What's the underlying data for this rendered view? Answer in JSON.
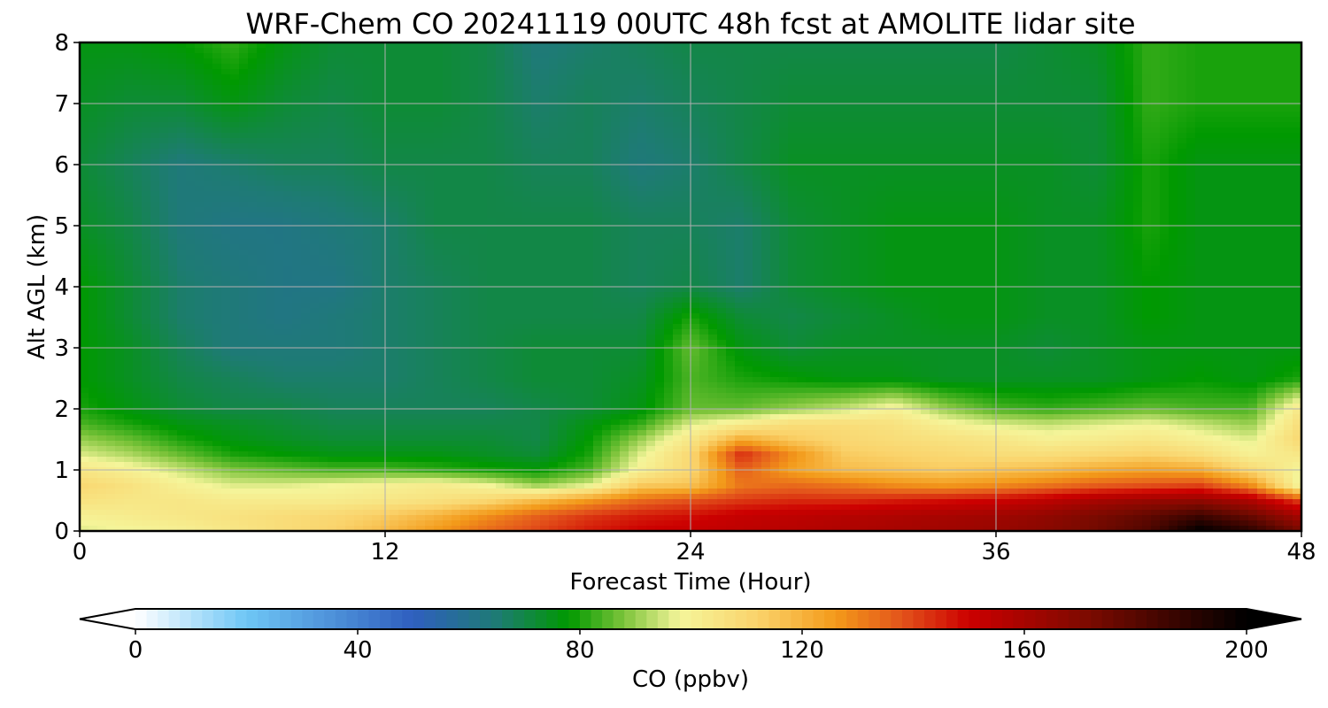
{
  "chart_data": {
    "type": "heatmap",
    "title": "WRF-Chem CO  20241119 00UTC 48h fcst at AMOLITE lidar site",
    "xlabel": "Forecast Time (Hour)",
    "ylabel": "Alt AGL (km)",
    "xlim": [
      0,
      48
    ],
    "ylim": [
      0,
      8
    ],
    "xticks": [
      0,
      12,
      24,
      36,
      48
    ],
    "yticks": [
      0,
      1,
      2,
      3,
      4,
      5,
      6,
      7,
      8
    ],
    "grid": true,
    "x": [
      0,
      2,
      4,
      6,
      8,
      10,
      12,
      14,
      16,
      18,
      20,
      22,
      24,
      26,
      28,
      30,
      32,
      34,
      36,
      38,
      40,
      42,
      44,
      46,
      48
    ],
    "y": [
      0,
      0.25,
      0.5,
      0.75,
      1,
      1.25,
      1.5,
      1.75,
      2,
      2.5,
      3,
      3.5,
      4,
      5,
      6,
      7,
      8
    ],
    "z": [
      [
        96,
        98,
        100,
        104,
        108,
        112,
        118,
        126,
        134,
        140,
        146,
        150,
        152,
        154,
        156,
        158,
        160,
        162,
        164,
        168,
        174,
        182,
        200,
        190,
        172
      ],
      [
        100,
        102,
        104,
        106,
        108,
        110,
        114,
        120,
        128,
        136,
        142,
        146,
        148,
        152,
        154,
        156,
        158,
        160,
        162,
        166,
        172,
        178,
        186,
        176,
        160
      ],
      [
        106,
        104,
        104,
        102,
        102,
        102,
        104,
        106,
        110,
        118,
        126,
        134,
        138,
        142,
        144,
        144,
        146,
        148,
        150,
        154,
        160,
        164,
        166,
        158,
        140
      ],
      [
        110,
        106,
        100,
        96,
        96,
        98,
        100,
        102,
        98,
        90,
        96,
        114,
        116,
        132,
        134,
        132,
        128,
        126,
        128,
        132,
        136,
        138,
        140,
        128,
        96
      ],
      [
        104,
        100,
        94,
        88,
        86,
        84,
        84,
        82,
        80,
        78,
        84,
        100,
        110,
        136,
        124,
        118,
        116,
        114,
        116,
        118,
        122,
        124,
        122,
        110,
        98
      ],
      [
        96,
        92,
        86,
        80,
        78,
        76,
        76,
        76,
        74,
        72,
        80,
        96,
        110,
        144,
        128,
        114,
        112,
        110,
        108,
        108,
        110,
        112,
        108,
        100,
        104
      ],
      [
        90,
        86,
        80,
        76,
        74,
        72,
        72,
        72,
        72,
        70,
        78,
        90,
        104,
        122,
        114,
        110,
        108,
        106,
        104,
        100,
        102,
        104,
        100,
        96,
        110
      ],
      [
        84,
        80,
        76,
        74,
        72,
        70,
        70,
        70,
        70,
        70,
        76,
        82,
        96,
        102,
        108,
        108,
        106,
        100,
        96,
        94,
        96,
        98,
        94,
        90,
        108
      ],
      [
        80,
        76,
        72,
        70,
        70,
        68,
        68,
        68,
        68,
        70,
        72,
        76,
        86,
        86,
        90,
        94,
        100,
        90,
        84,
        82,
        84,
        86,
        84,
        84,
        104
      ],
      [
        78,
        74,
        70,
        68,
        66,
        66,
        66,
        68,
        70,
        72,
        72,
        74,
        84,
        80,
        78,
        76,
        76,
        74,
        74,
        74,
        74,
        76,
        78,
        76,
        80
      ],
      [
        78,
        74,
        68,
        64,
        64,
        64,
        66,
        68,
        70,
        72,
        72,
        72,
        86,
        76,
        72,
        74,
        74,
        74,
        74,
        72,
        74,
        76,
        76,
        76,
        76
      ],
      [
        78,
        72,
        66,
        64,
        62,
        64,
        66,
        68,
        70,
        70,
        70,
        70,
        80,
        72,
        70,
        72,
        74,
        76,
        76,
        74,
        74,
        78,
        76,
        76,
        76
      ],
      [
        78,
        72,
        66,
        64,
        62,
        62,
        66,
        68,
        70,
        70,
        70,
        68,
        70,
        66,
        72,
        74,
        76,
        76,
        76,
        74,
        74,
        78,
        76,
        76,
        76
      ],
      [
        74,
        70,
        64,
        62,
        62,
        64,
        66,
        70,
        70,
        70,
        70,
        68,
        68,
        66,
        72,
        74,
        76,
        76,
        76,
        74,
        74,
        80,
        76,
        76,
        76
      ],
      [
        72,
        68,
        64,
        66,
        68,
        68,
        70,
        70,
        70,
        68,
        68,
        64,
        66,
        70,
        74,
        74,
        74,
        74,
        74,
        74,
        72,
        80,
        76,
        76,
        76
      ],
      [
        74,
        72,
        72,
        76,
        72,
        70,
        72,
        72,
        70,
        66,
        68,
        66,
        68,
        70,
        72,
        72,
        72,
        72,
        72,
        72,
        72,
        82,
        80,
        80,
        80
      ],
      [
        76,
        76,
        78,
        82,
        76,
        72,
        72,
        72,
        70,
        64,
        66,
        68,
        70,
        70,
        70,
        70,
        70,
        70,
        70,
        72,
        74,
        82,
        80,
        80,
        80
      ]
    ],
    "colorbar": {
      "label": "CO  (ppbv)",
      "min": 0,
      "max": 200,
      "extend": "both",
      "ticks": [
        0,
        40,
        80,
        120,
        160,
        200
      ],
      "colors": [
        {
          "v": 0,
          "c": "#ffffff"
        },
        {
          "v": 20,
          "c": "#6ec6f5"
        },
        {
          "v": 50,
          "c": "#2f5fbf"
        },
        {
          "v": 65,
          "c": "#1e7b74"
        },
        {
          "v": 78,
          "c": "#009900"
        },
        {
          "v": 88,
          "c": "#7ec43b"
        },
        {
          "v": 98,
          "c": "#f5f59a"
        },
        {
          "v": 112,
          "c": "#fad36b"
        },
        {
          "v": 126,
          "c": "#f39a1a"
        },
        {
          "v": 138,
          "c": "#e3531b"
        },
        {
          "v": 150,
          "c": "#cc0000"
        },
        {
          "v": 172,
          "c": "#7a0a00"
        },
        {
          "v": 200,
          "c": "#000000"
        }
      ]
    }
  }
}
